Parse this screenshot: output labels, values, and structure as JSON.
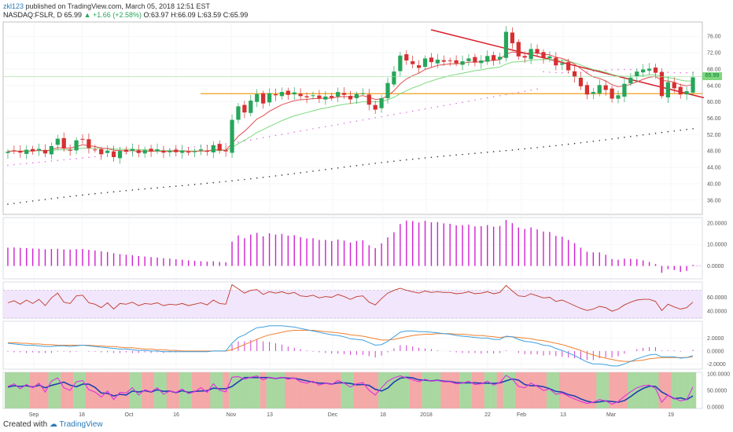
{
  "header": {
    "user": "zkl123",
    "published": " published on TradingView.com, March 05, 2018 12:51 EST",
    "symbol": "NASDAQ:FSLR, D",
    "last": "65.99",
    "change": "▲ +1.66 (+2.58%)",
    "open": "O:63.97",
    "high": "H:66.09",
    "low": "L:63.59",
    "close": "C:65.99"
  },
  "footer": {
    "created": "Created with",
    "brand": "TradingView"
  },
  "last_price_label": "65.99",
  "colors": {
    "up": "#26a65b",
    "down": "#d63030",
    "trend": "#d91e2a",
    "support": "#f29b1d",
    "ma_fast": "#e05050",
    "ma_slow": "#7ed97e",
    "ma_dots": "#e070e0",
    "long_dots": "#333333",
    "hist": "#d020d0",
    "rsi": "#c0392b",
    "macd": "#3ea0e0",
    "signal": "#f08030",
    "stoch_k": "#e030e0",
    "stoch_d": "#2040b0"
  },
  "chart_data": {
    "type": "candlestick",
    "x_ticks": [
      "Sep",
      "18",
      "Oct",
      "16",
      "Nov",
      "13",
      "Dec",
      "18",
      "2018",
      "22",
      "Feb",
      "13",
      "Mar",
      "19"
    ],
    "price_axis": [
      "76.00",
      "72.00",
      "68.00",
      "64.00",
      "60.00",
      "56.00",
      "52.00",
      "48.00",
      "44.00",
      "40.00",
      "36.00"
    ],
    "price_range": [
      32.5,
      79.5
    ],
    "support_level": 62.0,
    "trendline": {
      "from": [
        "2018-01-15",
        77.0
      ],
      "to": [
        "2018-03-20",
        60.0
      ]
    },
    "candles_close": [
      47.8,
      48.1,
      47.6,
      48.3,
      47.9,
      48.5,
      47.4,
      49.2,
      51.0,
      48.6,
      48.2,
      50.6,
      50.9,
      48.7,
      48.3,
      47.2,
      48.1,
      46.5,
      48.0,
      47.8,
      48.5,
      47.5,
      48.2,
      47.9,
      48.4,
      47.6,
      48.0,
      47.7,
      48.1,
      47.6,
      47.9,
      48.4,
      47.8,
      49.4,
      48.1,
      47.9,
      55.6,
      58.9,
      57.4,
      60.3,
      61.9,
      59.6,
      62.1,
      61.6,
      62.4,
      61.7,
      62.3,
      61.4,
      61.1,
      61.6,
      60.9,
      61.3,
      61.0,
      62.4,
      61.7,
      60.6,
      61.9,
      62.1,
      59.3,
      58.1,
      60.9,
      64.6,
      67.4,
      71.3,
      70.1,
      69.2,
      68.3,
      70.6,
      69.7,
      70.3,
      69.8,
      70.1,
      69.4,
      69.9,
      70.6,
      69.6,
      70.1,
      71.2,
      70.1,
      71.0,
      77.1,
      74.3,
      71.1,
      70.8,
      72.9,
      71.8,
      70.7,
      71.1,
      68.9,
      69.4,
      67.7,
      66.1,
      63.8,
      61.8,
      62.4,
      64.1,
      62.9,
      60.8,
      61.6,
      64.4,
      65.9,
      67.4,
      67.9,
      68.1,
      67.1,
      61.4,
      64.8,
      63.3,
      61.8,
      62.6,
      65.99
    ],
    "ma_fast": [
      47.9,
      48.0,
      47.9,
      48.0,
      48.0,
      48.2,
      48.0,
      48.3,
      48.8,
      48.7,
      48.7,
      49.1,
      49.5,
      49.3,
      49.1,
      48.7,
      48.6,
      48.2,
      48.1,
      48.0,
      48.1,
      47.9,
      48.0,
      47.9,
      48.0,
      47.9,
      48.0,
      47.9,
      48.0,
      47.9,
      47.9,
      48.0,
      48.0,
      48.3,
      48.3,
      48.2,
      49.8,
      51.6,
      52.8,
      54.3,
      55.8,
      56.6,
      57.7,
      58.5,
      59.3,
      59.8,
      60.3,
      60.5,
      60.6,
      60.8,
      60.8,
      60.9,
      60.9,
      61.2,
      61.3,
      61.2,
      61.3,
      61.5,
      61.1,
      60.6,
      60.7,
      61.5,
      62.7,
      64.4,
      65.6,
      66.4,
      67.0,
      67.9,
      68.4,
      68.9,
      69.1,
      69.3,
      69.3,
      69.4,
      69.7,
      69.7,
      69.8,
      70.1,
      70.1,
      70.3,
      71.7,
      72.2,
      72.0,
      71.8,
      72.0,
      71.9,
      71.6,
      71.5,
      70.9,
      70.6,
      70.0,
      69.2,
      68.1,
      67.0,
      66.1,
      65.7,
      65.1,
      64.2,
      63.7,
      63.9,
      64.3,
      64.9,
      65.5,
      66.0,
      66.2,
      65.2,
      65.1,
      64.8,
      64.2,
      63.9,
      64.3
    ],
    "ma_slow": [
      48.0,
      48.0,
      48.0,
      48.0,
      48.0,
      48.1,
      48.0,
      48.1,
      48.3,
      48.3,
      48.3,
      48.5,
      48.7,
      48.7,
      48.7,
      48.6,
      48.6,
      48.5,
      48.4,
      48.4,
      48.4,
      48.3,
      48.3,
      48.2,
      48.2,
      48.1,
      48.1,
      48.1,
      48.1,
      48.0,
      48.0,
      48.0,
      48.0,
      48.1,
      48.1,
      48.1,
      48.8,
      49.8,
      50.6,
      51.5,
      52.5,
      53.2,
      54.0,
      54.7,
      55.4,
      56.0,
      56.6,
      57.0,
      57.4,
      57.8,
      58.2,
      58.5,
      58.8,
      59.1,
      59.4,
      59.6,
      59.8,
      60.0,
      60.0,
      60.0,
      60.1,
      60.5,
      61.1,
      62.0,
      62.7,
      63.4,
      63.9,
      64.6,
      65.1,
      65.6,
      66.0,
      66.4,
      66.7,
      67.0,
      67.3,
      67.6,
      67.8,
      68.1,
      68.3,
      68.5,
      69.2,
      69.7,
      69.8,
      69.9,
      70.2,
      70.3,
      70.3,
      70.4,
      70.2,
      70.1,
      69.9,
      69.5,
      69.0,
      68.4,
      67.9,
      67.6,
      67.2,
      66.7,
      66.3,
      66.2,
      66.2,
      66.3,
      66.4,
      66.6,
      66.6,
      66.1,
      65.9,
      65.7,
      65.3,
      65.1,
      65.1
    ],
    "histogram": [
      8.5,
      8.6,
      8.4,
      8.3,
      8.1,
      8.0,
      7.8,
      7.9,
      8.0,
      7.7,
      7.6,
      7.8,
      7.9,
      7.5,
      7.2,
      6.8,
      6.5,
      5.9,
      5.5,
      5.2,
      5.0,
      4.6,
      4.4,
      4.1,
      3.9,
      3.6,
      3.4,
      3.1,
      2.9,
      2.6,
      2.4,
      2.2,
      2.0,
      2.2,
      1.9,
      1.7,
      11.3,
      14.2,
      12.9,
      14.6,
      15.4,
      13.8,
      15.2,
      14.6,
      14.9,
      14.1,
      14.3,
      13.4,
      12.8,
      12.9,
      12.1,
      12.1,
      11.6,
      12.3,
      11.8,
      10.9,
      11.6,
      11.9,
      9.6,
      8.3,
      10.5,
      13.3,
      15.7,
      19.5,
      21.1,
      20.9,
      20.2,
      21.0,
      20.3,
      20.4,
      19.8,
      19.6,
      18.9,
      19.0,
      19.2,
      18.4,
      18.5,
      19.0,
      18.3,
      18.6,
      21.4,
      19.9,
      17.9,
      17.2,
      17.9,
      17.0,
      16.0,
      15.8,
      14.0,
      13.6,
      12.1,
      10.6,
      8.5,
      6.6,
      6.3,
      6.3,
      5.2,
      3.2,
      2.9,
      3.4,
      3.3,
      3.2,
      2.6,
      1.8,
      0.9,
      -3.2,
      -1.5,
      -1.9,
      -2.8,
      -2.3,
      0.5
    ],
    "hist_axis": [
      "20.0000",
      "10.0000",
      "0.0000"
    ],
    "rsi": [
      52,
      55,
      50,
      56,
      51,
      57,
      48,
      59,
      66,
      53,
      51,
      62,
      63,
      52,
      50,
      45,
      52,
      43,
      51,
      50,
      53,
      48,
      51,
      50,
      52,
      48,
      50,
      49,
      51,
      48,
      50,
      52,
      49,
      56,
      51,
      50,
      78,
      72,
      66,
      70,
      71,
      64,
      68,
      66,
      68,
      65,
      67,
      62,
      61,
      63,
      59,
      61,
      60,
      64,
      61,
      57,
      61,
      62,
      53,
      49,
      58,
      66,
      70,
      73,
      70,
      68,
      66,
      69,
      67,
      68,
      67,
      67,
      65,
      66,
      68,
      65,
      66,
      68,
      65,
      67,
      77,
      69,
      62,
      61,
      65,
      62,
      59,
      60,
      54,
      56,
      52,
      48,
      44,
      41,
      43,
      47,
      45,
      40,
      43,
      49,
      53,
      56,
      57,
      57,
      54,
      41,
      50,
      46,
      43,
      45,
      53
    ],
    "rsi_axis": [
      "60.0000",
      "40.0000"
    ],
    "macd": [
      1.2,
      1.1,
      1.0,
      0.9,
      0.9,
      0.8,
      0.7,
      0.7,
      0.8,
      0.8,
      0.7,
      0.8,
      0.9,
      0.8,
      0.7,
      0.6,
      0.5,
      0.4,
      0.3,
      0.3,
      0.2,
      0.1,
      0.1,
      0.0,
      0.0,
      -0.1,
      -0.1,
      -0.1,
      -0.1,
      -0.1,
      -0.1,
      -0.1,
      -0.1,
      0.0,
      0.0,
      0.0,
      1.2,
      2.1,
      2.5,
      3.1,
      3.6,
      3.7,
      3.9,
      3.9,
      3.9,
      3.8,
      3.7,
      3.5,
      3.3,
      3.1,
      2.9,
      2.7,
      2.5,
      2.4,
      2.2,
      1.9,
      1.8,
      1.7,
      1.3,
      0.9,
      1.0,
      1.5,
      2.2,
      2.9,
      3.1,
      3.1,
      3.0,
      3.0,
      2.9,
      2.8,
      2.7,
      2.6,
      2.4,
      2.3,
      2.2,
      2.1,
      2.0,
      2.0,
      1.8,
      1.8,
      2.3,
      2.2,
      1.8,
      1.5,
      1.4,
      1.2,
      0.9,
      0.8,
      0.4,
      0.1,
      -0.3,
      -0.7,
      -1.2,
      -1.7,
      -2.0,
      -2.0,
      -2.1,
      -2.3,
      -2.3,
      -2.0,
      -1.6,
      -1.2,
      -0.9,
      -0.6,
      -0.5,
      -0.9,
      -0.9,
      -0.9,
      -1.1,
      -1.0,
      -0.7
    ],
    "signal": [
      1.3,
      1.3,
      1.2,
      1.2,
      1.1,
      1.1,
      1.0,
      1.0,
      0.9,
      0.9,
      0.9,
      0.9,
      0.9,
      0.9,
      0.8,
      0.8,
      0.7,
      0.7,
      0.6,
      0.5,
      0.5,
      0.4,
      0.3,
      0.3,
      0.2,
      0.2,
      0.1,
      0.1,
      0.0,
      0.0,
      0.0,
      0.0,
      0.0,
      0.0,
      0.0,
      0.0,
      0.2,
      0.6,
      1.0,
      1.4,
      1.8,
      2.2,
      2.5,
      2.7,
      2.9,
      3.1,
      3.2,
      3.2,
      3.2,
      3.2,
      3.1,
      3.0,
      2.9,
      2.8,
      2.7,
      2.5,
      2.4,
      2.3,
      2.1,
      1.9,
      1.7,
      1.7,
      1.8,
      2.0,
      2.2,
      2.4,
      2.5,
      2.6,
      2.6,
      2.7,
      2.7,
      2.7,
      2.6,
      2.6,
      2.5,
      2.4,
      2.4,
      2.3,
      2.2,
      2.1,
      2.2,
      2.2,
      2.1,
      2.0,
      1.9,
      1.7,
      1.6,
      1.4,
      1.2,
      1.0,
      0.7,
      0.4,
      0.1,
      -0.3,
      -0.6,
      -0.9,
      -1.1,
      -1.3,
      -1.5,
      -1.6,
      -1.6,
      -1.5,
      -1.4,
      -1.2,
      -1.1,
      -1.0,
      -1.0,
      -1.0,
      -1.0,
      -1.0,
      -0.9
    ],
    "macd_axis": [
      "2.0000",
      "0.0000",
      "-2.0000"
    ],
    "stoch_k": [
      62,
      70,
      55,
      68,
      58,
      72,
      45,
      78,
      88,
      58,
      50,
      76,
      80,
      52,
      45,
      30,
      48,
      22,
      44,
      42,
      58,
      36,
      52,
      46,
      58,
      38,
      48,
      44,
      54,
      40,
      46,
      58,
      44,
      70,
      50,
      46,
      90,
      92,
      84,
      90,
      94,
      82,
      90,
      86,
      90,
      84,
      88,
      76,
      72,
      78,
      66,
      72,
      68,
      80,
      72,
      60,
      70,
      74,
      50,
      36,
      58,
      78,
      88,
      94,
      88,
      82,
      76,
      84,
      78,
      80,
      76,
      76,
      70,
      72,
      78,
      68,
      70,
      78,
      66,
      74,
      96,
      84,
      62,
      58,
      72,
      62,
      50,
      54,
      38,
      42,
      32,
      24,
      16,
      10,
      14,
      22,
      18,
      8,
      16,
      32,
      46,
      58,
      64,
      66,
      56,
      14,
      36,
      26,
      18,
      22,
      60
    ],
    "stoch_d": [
      60,
      64,
      62,
      64,
      60,
      66,
      58,
      65,
      70,
      75,
      66,
      61,
      69,
      69,
      59,
      42,
      41,
      33,
      38,
      36,
      48,
      45,
      49,
      45,
      52,
      47,
      48,
      43,
      49,
      44,
      47,
      48,
      49,
      57,
      55,
      55,
      62,
      76,
      89,
      89,
      89,
      89,
      89,
      86,
      89,
      87,
      87,
      83,
      79,
      75,
      72,
      72,
      69,
      73,
      73,
      71,
      67,
      68,
      65,
      53,
      48,
      57,
      75,
      87,
      90,
      88,
      82,
      81,
      79,
      81,
      78,
      77,
      74,
      73,
      73,
      73,
      72,
      72,
      71,
      73,
      79,
      85,
      81,
      68,
      64,
      64,
      61,
      55,
      47,
      45,
      37,
      33,
      24,
      17,
      13,
      15,
      18,
      16,
      14,
      19,
      31,
      45,
      56,
      63,
      62,
      45,
      35,
      25,
      27,
      22,
      33
    ],
    "stoch_axis": [
      "100.0000",
      "0.0000"
    ],
    "regime": [
      1,
      1,
      1,
      1,
      0,
      0,
      0,
      1,
      1,
      0,
      0,
      1,
      1,
      0,
      0,
      0,
      0,
      0,
      0,
      0,
      1,
      1,
      0,
      0,
      1,
      1,
      0,
      0,
      1,
      1,
      0,
      0,
      0,
      1,
      1,
      0,
      1,
      1,
      1,
      1,
      1,
      0,
      1,
      1,
      1,
      0,
      0,
      0,
      0,
      0,
      0,
      0,
      0,
      0,
      1,
      1,
      0,
      0,
      0,
      0,
      1,
      1,
      1,
      1,
      1,
      0,
      0,
      1,
      1,
      1,
      0,
      0,
      0,
      1,
      1,
      0,
      0,
      1,
      1,
      0,
      1,
      1,
      0,
      0,
      0,
      0,
      0,
      1,
      1,
      0,
      0,
      0,
      0,
      0,
      0,
      1,
      1,
      0,
      0,
      0,
      1,
      1,
      1,
      1,
      1,
      0,
      0,
      1,
      1,
      1,
      1
    ]
  }
}
